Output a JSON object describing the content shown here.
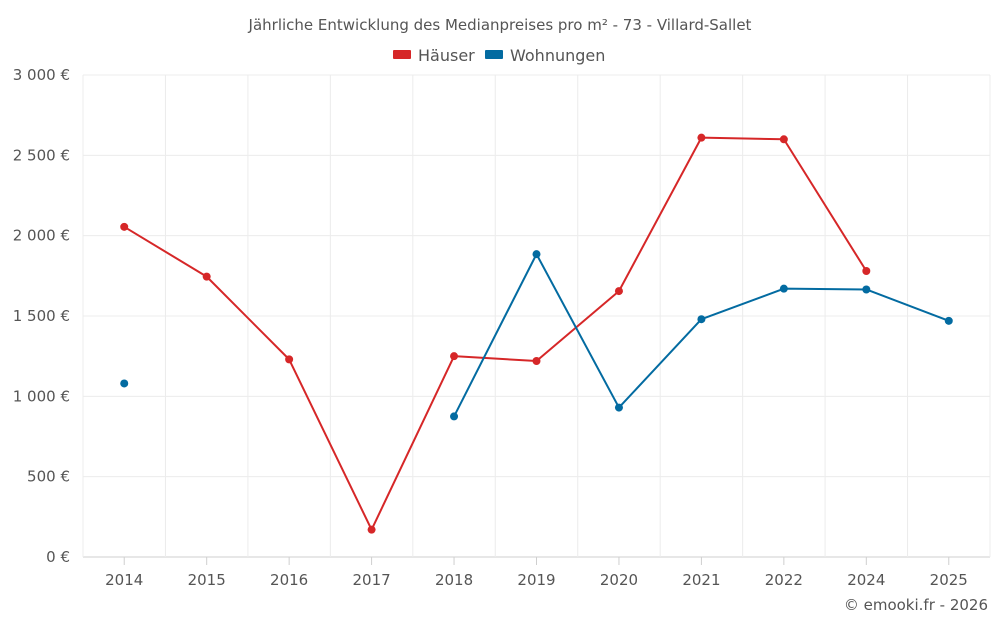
{
  "chart_data": {
    "type": "line",
    "title": "Jährliche Entwicklung des Medianpreises pro m² - 73 - Villard-Sallet",
    "categories": [
      "2014",
      "2015",
      "2016",
      "2017",
      "2018",
      "2019",
      "2020",
      "2021",
      "2022",
      "2024",
      "2025"
    ],
    "y_ticks": [
      "0 €",
      "500 €",
      "1 000 €",
      "1 500 €",
      "2 000 €",
      "2 500 €",
      "3 000 €"
    ],
    "y_tick_values": [
      0,
      500,
      1000,
      1500,
      2000,
      2500,
      3000
    ],
    "ylim": [
      0,
      3000
    ],
    "legend_position": "top-center",
    "grid": true,
    "series": [
      {
        "name": "Häuser",
        "color": "#d62728",
        "values": [
          2055,
          1745,
          1230,
          170,
          1250,
          1220,
          1655,
          2610,
          2600,
          1780,
          null
        ]
      },
      {
        "name": "Wohnungen",
        "color": "#036ba1",
        "values": [
          1080,
          null,
          null,
          null,
          875,
          1885,
          930,
          1480,
          1670,
          1665,
          1470
        ]
      }
    ],
    "credit": "© emooki.fr - 2026"
  }
}
